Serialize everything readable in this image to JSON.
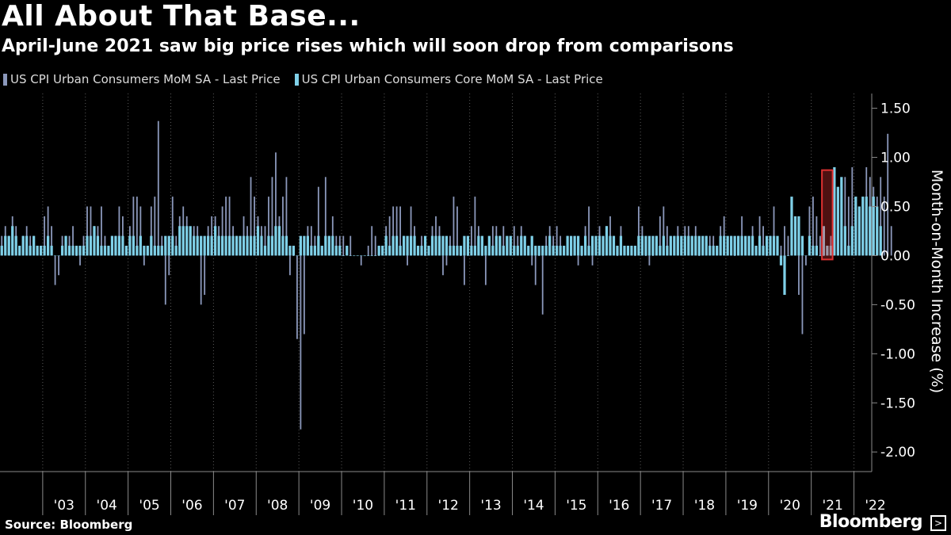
{
  "title": "All About That Base...",
  "subtitle": "April-June 2021 saw big price rises which will soon drop from comparisons",
  "source": "Source: Bloomberg",
  "brand": "Bloomberg",
  "brand_icon": "bloomberg-terminal-icon",
  "colors": {
    "background": "#000000",
    "headline_series": "#8b98bb",
    "core_series": "#7fd0e8",
    "highlight": "#e03131",
    "grid": "#5a5a5a"
  },
  "chart_data": {
    "type": "bar",
    "ylabel": "Month-on-Month Increase (%)",
    "ylim": [
      -2.2,
      1.65
    ],
    "yticks": [
      1.5,
      1.0,
      0.5,
      0.0,
      -0.5,
      -1.0,
      -1.5,
      -2.0
    ],
    "ytick_labels": [
      "1.50",
      "1.00",
      "0.50",
      "0.00",
      "-0.50",
      "-1.00",
      "-1.50",
      "-2.00"
    ],
    "y_axis_side": "right",
    "x_range": [
      "2002-01",
      "2022-05"
    ],
    "xtick_labels": [
      "'03",
      "'04",
      "'05",
      "'06",
      "'07",
      "'08",
      "'09",
      "'10",
      "'11",
      "'12",
      "'13",
      "'14",
      "'15",
      "'16",
      "'17",
      "'18",
      "'19",
      "'20",
      "'21",
      "'22"
    ],
    "grid": "vertical dotted at year boundaries",
    "legend_position": "top-left",
    "highlight_range": [
      "2021-04",
      "2021-06"
    ],
    "series": [
      {
        "name": "US CPI Urban Consumers MoM SA - Last Price",
        "start": "2002-01",
        "values": [
          0.2,
          0.3,
          0.2,
          0.4,
          0.3,
          0.1,
          0.2,
          0.3,
          0.2,
          0.2,
          0.1,
          0.1,
          0.4,
          0.5,
          0.3,
          -0.3,
          -0.2,
          0.2,
          0.2,
          0.2,
          0.3,
          0.0,
          -0.1,
          0.2,
          0.5,
          0.5,
          0.3,
          0.3,
          0.5,
          0.2,
          0.1,
          0.2,
          0.2,
          0.5,
          0.4,
          0.1,
          0.3,
          0.6,
          0.6,
          0.5,
          -0.1,
          0.1,
          0.5,
          0.6,
          1.37,
          0.2,
          -0.5,
          -0.2,
          0.6,
          0.2,
          0.4,
          0.5,
          0.4,
          0.2,
          0.3,
          0.3,
          -0.5,
          -0.4,
          0.3,
          0.4,
          0.4,
          0.3,
          0.5,
          0.6,
          0.6,
          0.3,
          0.2,
          0.1,
          0.4,
          0.3,
          0.8,
          0.6,
          0.4,
          0.3,
          0.3,
          0.6,
          0.8,
          1.05,
          0.4,
          0.6,
          0.8,
          -0.2,
          0.0,
          -0.85,
          -1.77,
          -0.8,
          0.3,
          0.3,
          0.2,
          0.7,
          0.1,
          0.8,
          0.2,
          0.4,
          0.2,
          0.2,
          0.2,
          0.1,
          0.2,
          0.0,
          0.0,
          -0.1,
          0.0,
          0.1,
          0.3,
          0.2,
          0.0,
          0.1,
          0.3,
          0.4,
          0.5,
          0.5,
          0.5,
          0.2,
          -0.1,
          0.5,
          0.3,
          0.1,
          0.2,
          0.0,
          0.1,
          0.3,
          0.4,
          0.3,
          -0.2,
          -0.1,
          0.2,
          0.6,
          0.5,
          0.0,
          -0.3,
          0.0,
          0.3,
          0.6,
          0.3,
          0.0,
          -0.3,
          0.1,
          0.3,
          0.3,
          0.2,
          0.3,
          0.1,
          0.1,
          0.3,
          0.2,
          0.3,
          0.2,
          0.1,
          -0.1,
          -0.3,
          0.0,
          -0.6,
          0.2,
          0.3,
          0.2,
          0.3,
          0.2,
          0.1,
          0.2,
          0.0,
          0.1,
          -0.1,
          0.0,
          0.3,
          0.5,
          -0.1,
          0.1,
          0.3,
          0.0,
          0.3,
          0.4,
          0.2,
          0.0,
          0.3,
          0.1,
          0.1,
          0.1,
          0.0,
          0.5,
          0.3,
          0.0,
          -0.1,
          0.0,
          0.2,
          0.4,
          0.5,
          0.3,
          0.1,
          0.2,
          0.3,
          0.1,
          0.3,
          0.3,
          0.2,
          0.3,
          0.0,
          0.1,
          0.2,
          0.2,
          0.2,
          0.1,
          0.3,
          0.4,
          0.1,
          0.2,
          0.0,
          0.2,
          0.4,
          0.1,
          0.1,
          0.3,
          0.1,
          0.4,
          0.3,
          0.0,
          0.2,
          0.5,
          0.1,
          0.1,
          0.3,
          0.2,
          0.4,
          0.3,
          -0.4,
          -0.8,
          -0.1,
          0.5,
          0.6,
          0.4,
          0.2,
          0.0,
          0.1,
          0.2,
          0.3,
          0.4,
          0.6,
          0.8,
          0.6,
          0.9,
          0.5,
          0.3,
          0.4,
          0.9,
          0.8,
          0.7,
          0.6,
          0.8,
          0.6,
          1.24,
          0.3
        ]
      },
      {
        "name": "US CPI Urban Consumers Core MoM SA - Last Price",
        "start": "2002-01",
        "values": [
          0.1,
          0.2,
          0.2,
          0.3,
          0.2,
          0.1,
          0.2,
          0.2,
          0.1,
          0.2,
          0.1,
          0.1,
          0.1,
          0.2,
          0.1,
          0.0,
          0.0,
          0.1,
          0.2,
          0.1,
          0.1,
          0.1,
          0.1,
          0.1,
          0.2,
          0.2,
          0.3,
          0.2,
          0.1,
          0.1,
          0.1,
          0.2,
          0.2,
          0.2,
          0.2,
          0.1,
          0.2,
          0.2,
          0.1,
          0.2,
          0.1,
          0.1,
          0.2,
          0.1,
          0.1,
          0.1,
          0.2,
          0.2,
          0.2,
          0.1,
          0.3,
          0.3,
          0.3,
          0.3,
          0.2,
          0.2,
          0.2,
          0.2,
          0.2,
          0.2,
          0.3,
          0.2,
          0.2,
          0.2,
          0.2,
          0.2,
          0.2,
          0.2,
          0.2,
          0.2,
          0.2,
          0.2,
          0.3,
          0.2,
          0.1,
          0.2,
          0.2,
          0.3,
          0.3,
          0.2,
          0.2,
          0.1,
          0.1,
          0.0,
          0.2,
          0.2,
          0.2,
          0.1,
          0.1,
          0.2,
          0.1,
          0.2,
          0.2,
          0.2,
          0.1,
          0.1,
          0.0,
          0.1,
          0.0,
          0.0,
          0.0,
          0.0,
          0.0,
          0.0,
          0.0,
          0.0,
          0.1,
          0.1,
          0.2,
          0.1,
          0.2,
          0.2,
          0.1,
          0.2,
          0.2,
          0.2,
          0.2,
          0.1,
          0.1,
          0.2,
          0.1,
          0.2,
          0.2,
          0.2,
          0.2,
          0.2,
          0.1,
          0.1,
          0.1,
          0.1,
          0.2,
          0.2,
          0.1,
          0.1,
          0.2,
          0.2,
          0.1,
          0.2,
          0.1,
          0.2,
          0.2,
          0.1,
          0.2,
          0.2,
          0.1,
          0.1,
          0.2,
          0.2,
          0.1,
          0.2,
          0.1,
          0.1,
          0.1,
          0.1,
          0.2,
          0.1,
          0.1,
          0.1,
          0.1,
          0.2,
          0.2,
          0.2,
          0.2,
          0.1,
          0.2,
          0.1,
          0.2,
          0.2,
          0.2,
          0.2,
          0.3,
          0.2,
          0.2,
          0.1,
          0.2,
          0.1,
          0.1,
          0.1,
          0.1,
          0.2,
          0.2,
          0.2,
          0.2,
          0.2,
          0.2,
          0.1,
          0.2,
          0.1,
          0.2,
          0.2,
          0.2,
          0.2,
          0.2,
          0.2,
          0.2,
          0.2,
          0.2,
          0.2,
          0.2,
          0.1,
          0.1,
          0.1,
          0.2,
          0.2,
          0.2,
          0.2,
          0.2,
          0.2,
          0.2,
          0.2,
          0.2,
          0.2,
          0.1,
          0.2,
          0.1,
          0.2,
          0.2,
          0.2,
          0.2,
          -0.1,
          -0.4,
          0.0,
          0.6,
          0.4,
          0.4,
          0.2,
          0.0,
          0.2,
          0.1,
          0.1,
          0.0,
          0.3,
          0.1,
          0.1,
          0.9,
          0.7,
          0.8,
          0.3,
          0.1,
          0.3,
          0.6,
          0.5,
          0.6,
          0.6,
          0.5,
          0.6,
          0.5,
          0.3
        ]
      }
    ]
  }
}
